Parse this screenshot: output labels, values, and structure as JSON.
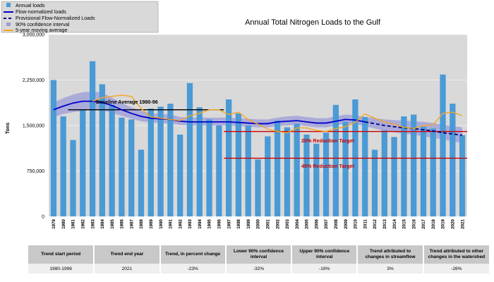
{
  "chart_data": {
    "type": "bar",
    "title": "Annual Total Nitrogen Loads to the Gulf",
    "ylabel": "Tons",
    "xlabel": "",
    "ylim": [
      0,
      3000000
    ],
    "yticks": [
      0,
      750000,
      1500000,
      2250000,
      3000000
    ],
    "ytick_labels": [
      "0",
      "750,000",
      "1,500,000",
      "2,250,000",
      "3,000,000"
    ],
    "grid": true,
    "categories": [
      "1979",
      "1980",
      "1981",
      "1982",
      "1983",
      "1984",
      "1985",
      "1986",
      "1987",
      "1988",
      "1989",
      "1990",
      "1991",
      "1992",
      "1993",
      "1994",
      "1995",
      "1996",
      "1997",
      "1998",
      "1999",
      "2000",
      "2001",
      "2002",
      "2003",
      "2004",
      "2005",
      "2006",
      "2007",
      "2008",
      "2009",
      "2010",
      "2011",
      "2012",
      "2013",
      "2014",
      "2015",
      "2016",
      "2017",
      "2018",
      "2019",
      "2020",
      "2021"
    ],
    "series": [
      {
        "name": "Annual loads",
        "type": "bar",
        "color": "#4a9ad6",
        "values": [
          2250000,
          1650000,
          1260000,
          1760000,
          2560000,
          2180000,
          1840000,
          1630000,
          1600000,
          1100000,
          1780000,
          1810000,
          1860000,
          1350000,
          2200000,
          1800000,
          1600000,
          1500000,
          1930000,
          1700000,
          1500000,
          940000,
          1320000,
          1580000,
          1470000,
          1530000,
          1350000,
          1200000,
          1380000,
          1840000,
          1560000,
          1930000,
          1640000,
          1100000,
          1420000,
          1310000,
          1650000,
          1680000,
          1480000,
          1450000,
          2340000,
          1860000,
          1340000
        ]
      },
      {
        "name": "Flow-normalized loads",
        "type": "line",
        "color": "#0000cc",
        "x": [
          "1979",
          "1980",
          "1981",
          "1982",
          "1983",
          "1984",
          "1985",
          "1986",
          "1987",
          "1988",
          "1989",
          "1990",
          "1991",
          "1992",
          "1993",
          "1994",
          "1995",
          "1996",
          "1997",
          "1998",
          "1999",
          "2000",
          "2001",
          "2002",
          "2003",
          "2004",
          "2005",
          "2006",
          "2007",
          "2008",
          "2009",
          "2010",
          "2011"
        ],
        "values": [
          1760000,
          1820000,
          1870000,
          1900000,
          1900000,
          1880000,
          1830000,
          1760000,
          1700000,
          1650000,
          1620000,
          1610000,
          1600000,
          1570000,
          1560000,
          1560000,
          1560000,
          1560000,
          1560000,
          1550000,
          1540000,
          1530000,
          1530000,
          1560000,
          1570000,
          1580000,
          1560000,
          1540000,
          1540000,
          1570000,
          1600000,
          1590000,
          1560000
        ]
      },
      {
        "name": "Provisional Flow-Normalized Loads",
        "type": "dashed-line",
        "color": "#000080",
        "x": [
          "2011",
          "2012",
          "2013",
          "2014",
          "2015",
          "2016",
          "2017",
          "2018",
          "2019",
          "2020",
          "2021"
        ],
        "values": [
          1560000,
          1530000,
          1500000,
          1480000,
          1460000,
          1450000,
          1430000,
          1410000,
          1380000,
          1360000,
          1340000
        ]
      },
      {
        "name": "90% confidence interval",
        "type": "band",
        "color": "#9b9bd9",
        "lower": [
          1640000,
          1690000,
          1720000,
          1740000,
          1760000,
          1750000,
          1710000,
          1660000,
          1610000,
          1570000,
          1550000,
          1540000,
          1530000,
          1510000,
          1500000,
          1500000,
          1500000,
          1500000,
          1500000,
          1490000,
          1480000,
          1470000,
          1470000,
          1490000,
          1500000,
          1510000,
          1490000,
          1470000,
          1470000,
          1500000,
          1530000,
          1520000,
          1490000,
          1450000,
          1410000,
          1390000,
          1360000,
          1350000,
          1320000,
          1300000,
          1270000,
          1240000,
          1210000
        ],
        "upper": [
          1880000,
          1950000,
          2010000,
          2050000,
          2060000,
          2040000,
          1960000,
          1870000,
          1800000,
          1740000,
          1700000,
          1690000,
          1680000,
          1640000,
          1630000,
          1630000,
          1630000,
          1630000,
          1630000,
          1620000,
          1610000,
          1600000,
          1600000,
          1630000,
          1650000,
          1660000,
          1640000,
          1620000,
          1620000,
          1650000,
          1680000,
          1670000,
          1640000,
          1620000,
          1600000,
          1590000,
          1580000,
          1570000,
          1560000,
          1540000,
          1510000,
          1490000,
          1470000
        ]
      },
      {
        "name": "5-year moving average",
        "type": "line",
        "color": "#f5a623",
        "x": [
          "1983",
          "1984",
          "1985",
          "1986",
          "1987",
          "1988",
          "1989",
          "1990",
          "1991",
          "1992",
          "1993",
          "1994",
          "1995",
          "1996",
          "1997",
          "1998",
          "1999",
          "2000",
          "2001",
          "2002",
          "2003",
          "2004",
          "2005",
          "2006",
          "2007",
          "2008",
          "2009",
          "2010",
          "2011",
          "2012",
          "2013",
          "2014",
          "2015",
          "2016",
          "2017",
          "2018",
          "2019",
          "2020",
          "2021"
        ],
        "values": [
          1900000,
          1960000,
          1980000,
          2000000,
          1980000,
          1780000,
          1640000,
          1620000,
          1600000,
          1580000,
          1660000,
          1700000,
          1760000,
          1760000,
          1680000,
          1720000,
          1600000,
          1520000,
          1440000,
          1400000,
          1380000,
          1460000,
          1460000,
          1420000,
          1400000,
          1450000,
          1480000,
          1550000,
          1690000,
          1620000,
          1560000,
          1520000,
          1470000,
          1450000,
          1500000,
          1510000,
          1700000,
          1720000,
          1660000
        ]
      }
    ],
    "reference_lines": [
      {
        "label": "Baseline Average 1980-96",
        "value": 1760000,
        "from": "1981",
        "to": "1996",
        "color": "#000000"
      },
      {
        "label": "20% Reduction Target",
        "value": 1400000,
        "from": "1997",
        "to": "2021",
        "color": "#cc0000"
      },
      {
        "label": "45% Reduction Target",
        "value": 960000,
        "from": "1997",
        "to": "2021",
        "color": "#cc0000"
      }
    ],
    "legend_position": "top-left"
  },
  "table": {
    "headers": [
      "Trend start period",
      "Trend end year",
      "Trend, in percent change",
      "Lower 90% confidence interval",
      "Upper 90% confidence interval",
      "Trend attributed to changes in streamflow",
      "Trend attributed to other changes in the watershed"
    ],
    "row": [
      "1980-1996",
      "2021",
      "-23%",
      "-32%",
      "-19%",
      "3%",
      "-26%"
    ]
  }
}
